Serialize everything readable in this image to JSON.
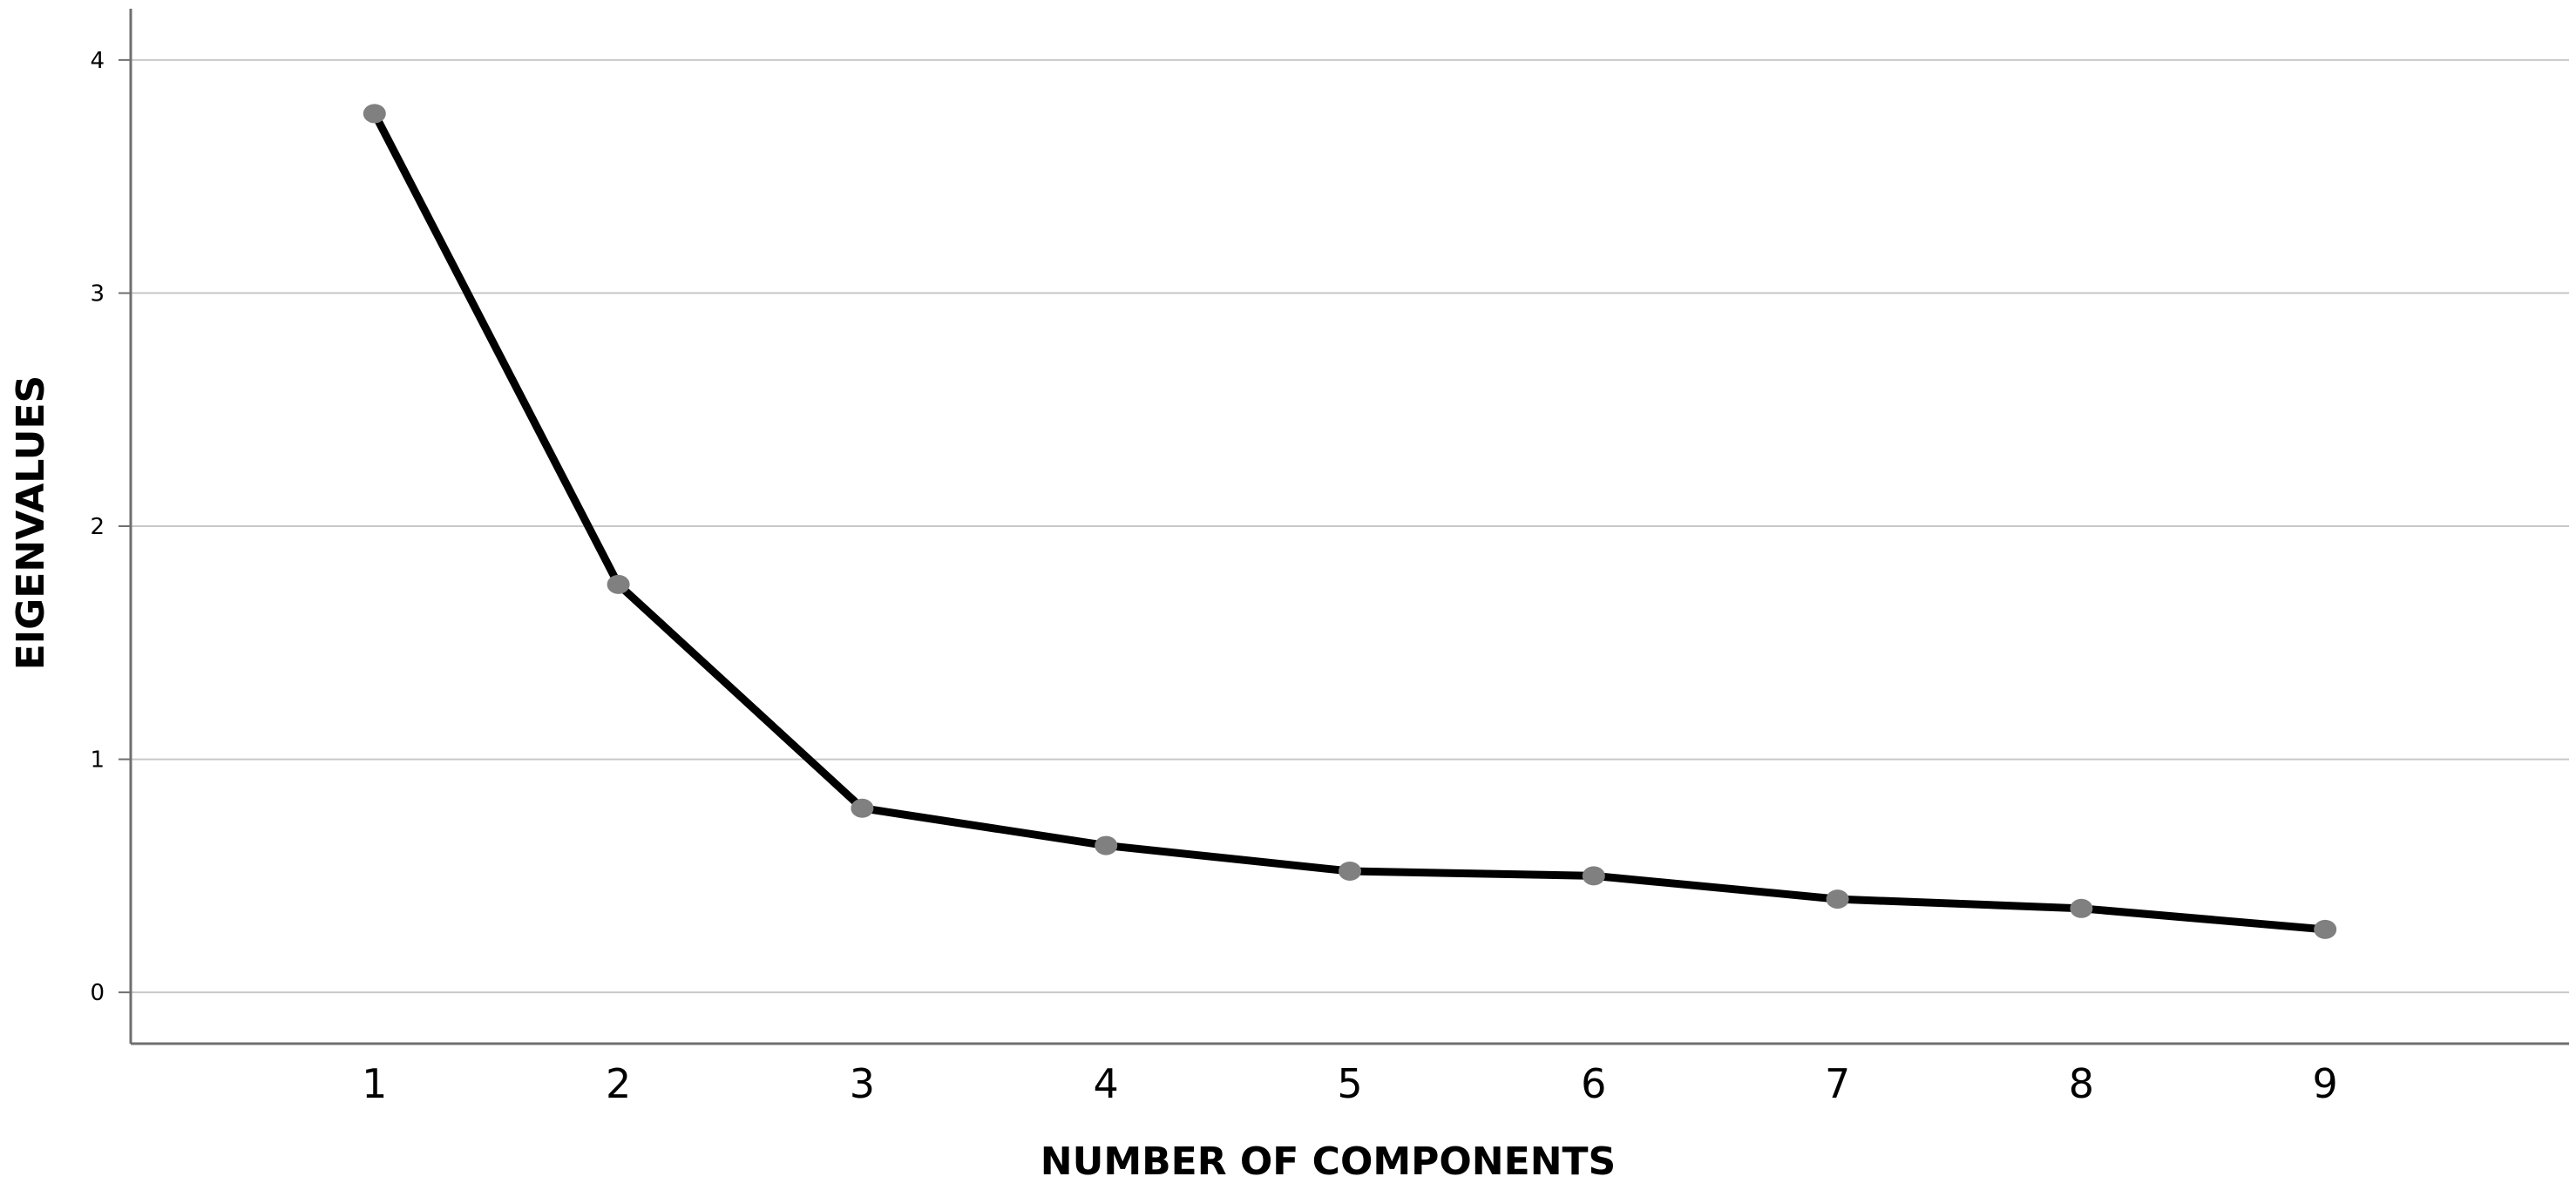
{
  "chart_data": {
    "type": "line",
    "title": "",
    "xlabel": "NUMBER OF COMPONENTS",
    "ylabel": "EIGENVALUES",
    "x": [
      1,
      2,
      3,
      4,
      5,
      6,
      7,
      8,
      9
    ],
    "series": [
      {
        "values": [
          3.77,
          1.75,
          0.79,
          0.63,
          0.52,
          0.5,
          0.4,
          0.36,
          0.27
        ]
      }
    ],
    "xlim": [
      0,
      10
    ],
    "ylim": [
      -0.22,
      4.22
    ],
    "yticks": [
      0,
      1,
      2,
      3,
      4
    ],
    "xticks": [
      1,
      2,
      3,
      4,
      5,
      6,
      7,
      8,
      9
    ],
    "grid": "horizontal",
    "legend": "none",
    "colors": {
      "line": "#000000",
      "marker": "#808080",
      "grid": "#c8c8c8",
      "axis": "#6f6f6f"
    }
  }
}
